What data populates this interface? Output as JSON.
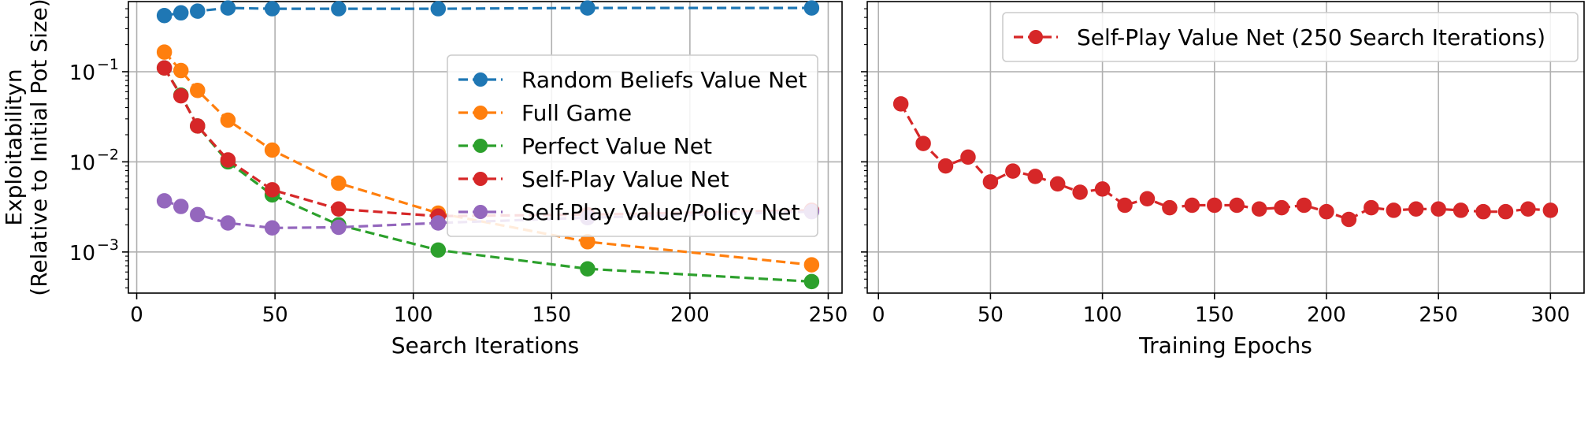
{
  "chart_data": [
    {
      "type": "line",
      "xlabel": "Search Iterations",
      "ylabel": [
        "Exploitabilityn",
        "(Relative to Initial Pot Size)"
      ],
      "xscale": "linear",
      "yscale": "log",
      "xlim": [
        -3,
        255
      ],
      "ylim": [
        0.00035,
        0.6
      ],
      "xticks": [
        0,
        50,
        100,
        150,
        200,
        250
      ],
      "xtick_labels": [
        "0",
        "50",
        "100",
        "150",
        "200",
        "250"
      ],
      "yticks": [
        0.001,
        0.01,
        0.1
      ],
      "ytick_labels": [
        "10",
        "10",
        "10"
      ],
      "ytick_exponents": [
        "−3",
        "−2",
        "−1"
      ],
      "grid": true,
      "legend_position": "upper right",
      "series": [
        {
          "name": "Random Beliefs Value Net",
          "color": "#1f77b4",
          "x": [
            10,
            16,
            22,
            33,
            49,
            73,
            109,
            163,
            244
          ],
          "y": [
            0.42,
            0.45,
            0.47,
            0.51,
            0.5,
            0.5,
            0.5,
            0.51,
            0.51
          ]
        },
        {
          "name": "Full Game",
          "color": "#ff7f0e",
          "x": [
            10,
            16,
            22,
            33,
            49,
            73,
            109,
            163,
            244
          ],
          "y": [
            0.165,
            0.103,
            0.062,
            0.029,
            0.0135,
            0.0058,
            0.0027,
            0.0013,
            0.00072
          ]
        },
        {
          "name": "Perfect Value Net",
          "color": "#2ca02c",
          "x": [
            10,
            16,
            22,
            33,
            49,
            73,
            109,
            163,
            244
          ],
          "y": [
            0.11,
            0.055,
            0.025,
            0.01,
            0.0043,
            0.002,
            0.00105,
            0.00065,
            0.00047
          ]
        },
        {
          "name": "Self-Play Value Net",
          "color": "#d62728",
          "x": [
            10,
            16,
            22,
            33,
            49,
            73,
            109,
            163,
            244
          ],
          "y": [
            0.11,
            0.054,
            0.025,
            0.0105,
            0.0049,
            0.003,
            0.0025,
            0.0026,
            0.0029
          ]
        },
        {
          "name": "Self-Play Value/Policy Net",
          "color": "#9467bd",
          "x": [
            10,
            16,
            22,
            33,
            49,
            73,
            109,
            163,
            244
          ],
          "y": [
            0.0037,
            0.0032,
            0.0026,
            0.0021,
            0.00185,
            0.00188,
            0.0021,
            0.0024,
            0.0028
          ]
        }
      ]
    },
    {
      "type": "line",
      "xlabel": "Training Epochs",
      "ylabel": "",
      "xscale": "linear",
      "yscale": "log",
      "xlim": [
        -5,
        315
      ],
      "ylim": [
        0.00035,
        0.6
      ],
      "xticks": [
        0,
        50,
        100,
        150,
        200,
        250,
        300
      ],
      "xtick_labels": [
        "0",
        "50",
        "100",
        "150",
        "200",
        "250",
        "300"
      ],
      "yticks": [
        0.001,
        0.01,
        0.1
      ],
      "grid": true,
      "legend_position": "upper right",
      "series": [
        {
          "name": "Self-Play Value Net (250 Search Iterations)",
          "color": "#d62728",
          "x": [
            10,
            20,
            30,
            40,
            50,
            60,
            70,
            80,
            90,
            100,
            110,
            120,
            130,
            140,
            150,
            160,
            170,
            180,
            190,
            200,
            210,
            220,
            230,
            240,
            250,
            260,
            270,
            280,
            290,
            300
          ],
          "y": [
            0.044,
            0.016,
            0.009,
            0.0113,
            0.006,
            0.0079,
            0.0069,
            0.0057,
            0.0046,
            0.005,
            0.0033,
            0.0039,
            0.0031,
            0.0033,
            0.0033,
            0.0033,
            0.003,
            0.0031,
            0.0033,
            0.0028,
            0.0023,
            0.0031,
            0.0029,
            0.003,
            0.003,
            0.0029,
            0.0028,
            0.0028,
            0.003,
            0.0029
          ]
        }
      ]
    }
  ]
}
